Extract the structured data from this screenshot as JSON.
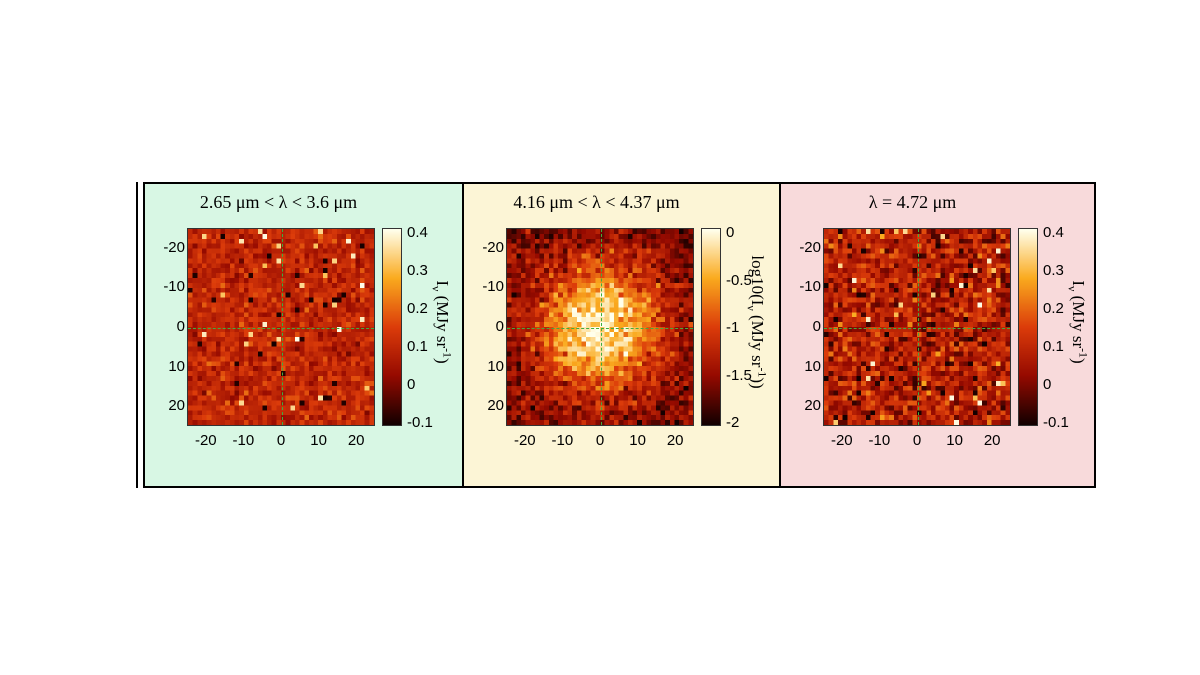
{
  "chart_data": [
    {
      "type": "heatmap",
      "title": "2.65 μm < λ < 3.6 μm",
      "background": "#d8f7e4",
      "x_ticks": [
        -20,
        -10,
        0,
        10,
        20
      ],
      "y_ticks": [
        -20,
        -10,
        0,
        10,
        20
      ],
      "xlim": [
        -25,
        25
      ],
      "ylim": [
        -25,
        25
      ],
      "colorbar": {
        "ticks": [
          "0.4",
          "0.3",
          "0.2",
          "0.1",
          "0",
          "-0.1"
        ],
        "range": [
          -0.1,
          0.4
        ],
        "label_main": "I",
        "label_sub": "ν",
        "label_unit": " (MJy sr",
        "label_sup": "-1",
        "label_end": ")"
      },
      "colormap": "hot",
      "pattern": "noise",
      "level_mean": 0.1,
      "level_noise": 0.04,
      "crosshair": [
        0,
        0
      ]
    },
    {
      "type": "heatmap",
      "title": "4.16 μm < λ < 4.37 μm",
      "background": "#fcf5d6",
      "x_ticks": [
        -20,
        -10,
        0,
        10,
        20
      ],
      "y_ticks": [
        -20,
        -10,
        0,
        10,
        20
      ],
      "xlim": [
        -25,
        25
      ],
      "ylim": [
        -25,
        25
      ],
      "colorbar": {
        "ticks": [
          "0",
          "-0.5",
          "-1",
          "-1.5",
          "-2"
        ],
        "range": [
          -2,
          0
        ],
        "label_main": "log10(I",
        "label_sub": "ν",
        "label_unit": " (MJy sr",
        "label_sup": "-1",
        "label_end": "))"
      },
      "colormap": "hot",
      "pattern": "peak",
      "peak_value": -0.05,
      "background_value": -1.6,
      "crosshair": [
        0,
        0
      ]
    },
    {
      "type": "heatmap",
      "title": "λ = 4.72 μm",
      "background": "#f8dadb",
      "x_ticks": [
        -20,
        -10,
        0,
        10,
        20
      ],
      "y_ticks": [
        -20,
        -10,
        0,
        10,
        20
      ],
      "xlim": [
        -25,
        25
      ],
      "ylim": [
        -25,
        25
      ],
      "colorbar": {
        "ticks": [
          "0.4",
          "0.3",
          "0.2",
          "0.1",
          "0",
          "-0.1"
        ],
        "range": [
          -0.1,
          0.4
        ],
        "label_main": "I",
        "label_sub": "ν",
        "label_unit": " (MJy sr",
        "label_sup": "-1",
        "label_end": ")"
      },
      "colormap": "hot",
      "pattern": "noise",
      "level_mean": 0.08,
      "level_noise": 0.07,
      "crosshair": [
        0,
        0
      ]
    }
  ]
}
